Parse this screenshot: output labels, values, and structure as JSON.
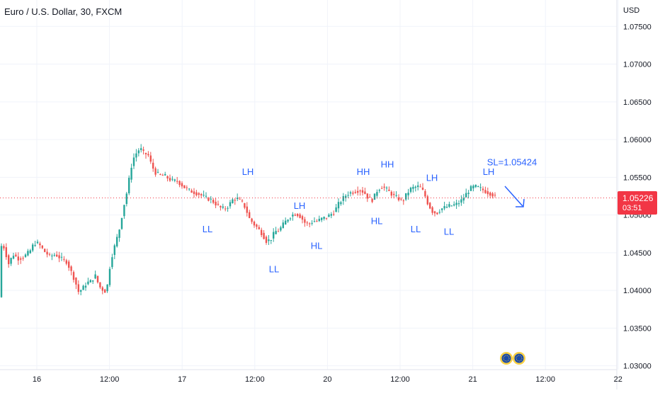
{
  "header": {
    "title": "Euro / U.S. Dollar, 30, FXCM",
    "axis_unit": "USD"
  },
  "price_tag": {
    "price": "1.05226",
    "countdown": "03:51"
  },
  "colors": {
    "up": "#26a69a",
    "down": "#ef5350",
    "annotation": "#2962ff",
    "last_price": "#f23645",
    "grid": "#f0f3fa"
  },
  "chart_data": {
    "type": "candlestick",
    "symbol": "EURUSD",
    "timeframe": "30",
    "source": "FXCM",
    "ylim": [
      1.0295,
      1.0785
    ],
    "yticks": [
      "1.03000",
      "1.03500",
      "1.04000",
      "1.04500",
      "1.05000",
      "1.05500",
      "1.06000",
      "1.06500",
      "1.07000",
      "1.07500"
    ],
    "xticks": [
      "16",
      "12:00",
      "17",
      "12:00",
      "20",
      "12:00",
      "21",
      "12:00",
      "22"
    ],
    "last_price": 1.05226,
    "path": [
      [
        0,
        1.0385
      ],
      [
        4,
        1.0465
      ],
      [
        8,
        1.0455
      ],
      [
        14,
        1.0435
      ],
      [
        20,
        1.0448
      ],
      [
        28,
        1.0442
      ],
      [
        36,
        1.0445
      ],
      [
        44,
        1.0452
      ],
      [
        50,
        1.0463
      ],
      [
        56,
        1.0462
      ],
      [
        64,
        1.0452
      ],
      [
        72,
        1.0445
      ],
      [
        80,
        1.0448
      ],
      [
        88,
        1.0442
      ],
      [
        96,
        1.0438
      ],
      [
        102,
        1.0425
      ],
      [
        108,
        1.0412
      ],
      [
        112,
        1.0398
      ],
      [
        118,
        1.0402
      ],
      [
        124,
        1.041
      ],
      [
        130,
        1.0412
      ],
      [
        136,
        1.042
      ],
      [
        142,
        1.0405
      ],
      [
        148,
        1.04
      ],
      [
        152,
        1.0398
      ],
      [
        158,
        1.044
      ],
      [
        164,
        1.046
      ],
      [
        170,
        1.048
      ],
      [
        176,
        1.051
      ],
      [
        182,
        1.0535
      ],
      [
        186,
        1.056
      ],
      [
        190,
        1.0575
      ],
      [
        196,
        1.0585
      ],
      [
        200,
        1.0588
      ],
      [
        206,
        1.058
      ],
      [
        210,
        1.0582
      ],
      [
        216,
        1.0565
      ],
      [
        222,
        1.0555
      ],
      [
        228,
        1.0553
      ],
      [
        234,
        1.0552
      ],
      [
        240,
        1.0548
      ],
      [
        246,
        1.0545
      ],
      [
        252,
        1.0545
      ],
      [
        258,
        1.054
      ],
      [
        264,
        1.0535
      ],
      [
        270,
        1.0532
      ],
      [
        276,
        1.053
      ],
      [
        282,
        1.0528
      ],
      [
        288,
        1.0525
      ],
      [
        294,
        1.0522
      ],
      [
        300,
        1.052
      ],
      [
        306,
        1.0515
      ],
      [
        312,
        1.051
      ],
      [
        318,
        1.0508
      ],
      [
        324,
        1.0512
      ],
      [
        330,
        1.052
      ],
      [
        336,
        1.0522
      ],
      [
        342,
        1.0518
      ],
      [
        348,
        1.051
      ],
      [
        354,
        1.0495
      ],
      [
        360,
        1.0488
      ],
      [
        366,
        1.0482
      ],
      [
        372,
        1.0475
      ],
      [
        378,
        1.0465
      ],
      [
        384,
        1.0468
      ],
      [
        390,
        1.0478
      ],
      [
        396,
        1.048
      ],
      [
        402,
        1.0488
      ],
      [
        408,
        1.0495
      ],
      [
        414,
        1.05
      ],
      [
        420,
        1.0502
      ],
      [
        426,
        1.0498
      ],
      [
        432,
        1.049
      ],
      [
        438,
        1.0488
      ],
      [
        444,
        1.0492
      ],
      [
        450,
        1.0492
      ],
      [
        456,
        1.0495
      ],
      [
        462,
        1.0497
      ],
      [
        468,
        1.05
      ],
      [
        474,
        1.0505
      ],
      [
        480,
        1.0515
      ],
      [
        486,
        1.0522
      ],
      [
        492,
        1.0528
      ],
      [
        498,
        1.053
      ],
      [
        504,
        1.0532
      ],
      [
        510,
        1.0533
      ],
      [
        516,
        1.053
      ],
      [
        522,
        1.0522
      ],
      [
        528,
        1.052
      ],
      [
        534,
        1.0532
      ],
      [
        540,
        1.0538
      ],
      [
        546,
        1.0535
      ],
      [
        552,
        1.053
      ],
      [
        558,
        1.0525
      ],
      [
        564,
        1.0522
      ],
      [
        570,
        1.0518
      ],
      [
        576,
        1.0528
      ],
      [
        582,
        1.0535
      ],
      [
        588,
        1.0537
      ],
      [
        594,
        1.0538
      ],
      [
        600,
        1.053
      ],
      [
        606,
        1.0515
      ],
      [
        612,
        1.0505
      ],
      [
        618,
        1.0502
      ],
      [
        624,
        1.0508
      ],
      [
        630,
        1.051
      ],
      [
        636,
        1.0512
      ],
      [
        642,
        1.0513
      ],
      [
        648,
        1.0515
      ],
      [
        654,
        1.052
      ],
      [
        660,
        1.0528
      ],
      [
        666,
        1.0535
      ],
      [
        672,
        1.0538
      ],
      [
        678,
        1.0536
      ],
      [
        684,
        1.0533
      ],
      [
        690,
        1.053
      ],
      [
        696,
        1.0528
      ],
      [
        702,
        1.05226
      ]
    ],
    "annotations": [
      {
        "text": "LH",
        "x": 350,
        "y": 1.0553
      },
      {
        "text": "LL",
        "x": 293,
        "y": 1.0477
      },
      {
        "text": "LL",
        "x": 387,
        "y": 1.0424
      },
      {
        "text": "LH",
        "x": 423,
        "y": 1.0508
      },
      {
        "text": "HL",
        "x": 447,
        "y": 1.0455
      },
      {
        "text": "HH",
        "x": 513,
        "y": 1.0553
      },
      {
        "text": "HH",
        "x": 547,
        "y": 1.0563
      },
      {
        "text": "HL",
        "x": 532,
        "y": 1.0488
      },
      {
        "text": "LL",
        "x": 587,
        "y": 1.0477
      },
      {
        "text": "LH",
        "x": 610,
        "y": 1.0545
      },
      {
        "text": "LL",
        "x": 634,
        "y": 1.0474
      },
      {
        "text": "LH",
        "x": 690,
        "y": 1.0553
      },
      {
        "text": "SL=1.05424",
        "x": 723,
        "y": 1.0566
      }
    ]
  }
}
